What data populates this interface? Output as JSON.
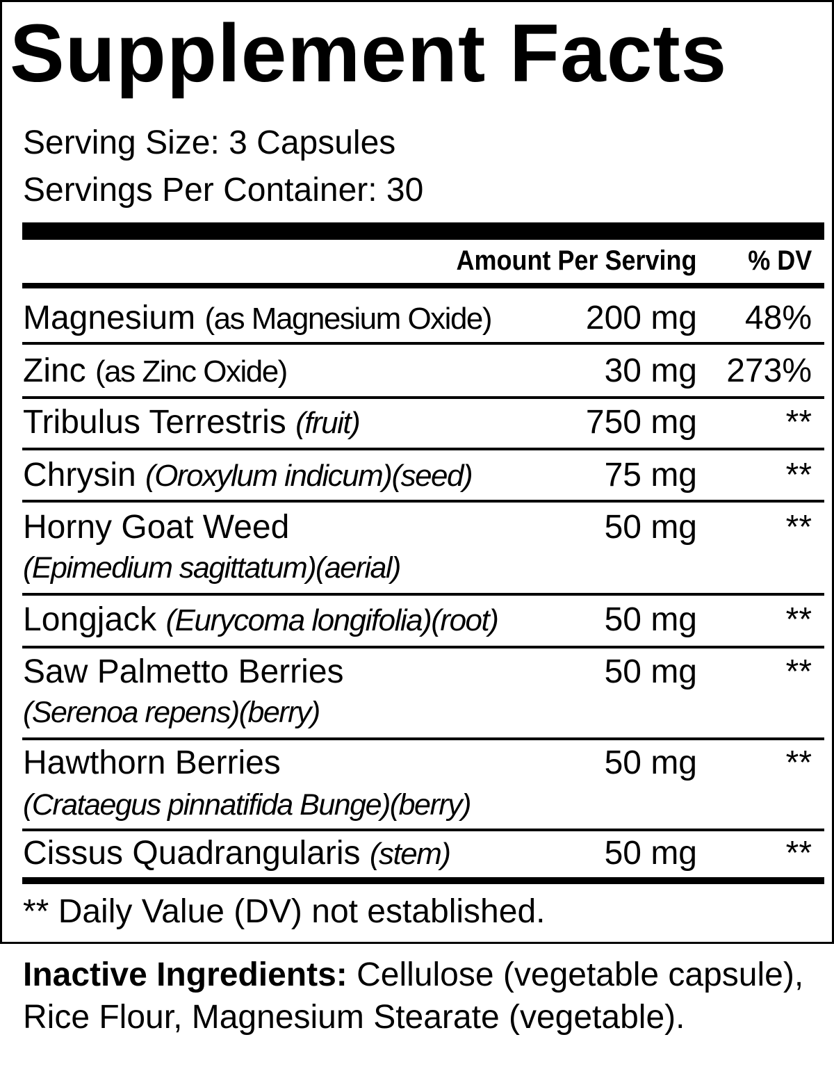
{
  "title": "Supplement Facts",
  "serving_size": "Serving Size: 3 Capsules",
  "servings_per_container": "Servings Per Container: 30",
  "header": {
    "amount": "Amount Per Serving",
    "dv": "% DV"
  },
  "rows": [
    {
      "name": "Magnesium",
      "detail": "(as Magnesium Oxide)",
      "amount": "200 mg",
      "dv": "48%"
    },
    {
      "name": "Zinc",
      "detail": "(as Zinc Oxide)",
      "amount": "30 mg",
      "dv": "273%"
    },
    {
      "name": "Tribulus Terrestris",
      "detail": "(fruit)",
      "amount": "750 mg",
      "dv": "**"
    },
    {
      "name": "Chrysin",
      "detail": "(Oroxylum indicum)(seed)",
      "amount": "75 mg",
      "dv": "**"
    },
    {
      "name": "Horny Goat Weed",
      "detail": "(Epimedium sagittatum)(aerial)",
      "amount": "50 mg",
      "dv": "**"
    },
    {
      "name": "Longjack",
      "detail": "(Eurycoma longifolia)(root)",
      "amount": "50 mg",
      "dv": "**"
    },
    {
      "name": "Saw Palmetto Berries",
      "detail": "(Serenoa repens)(berry)",
      "amount": "50 mg",
      "dv": "**"
    },
    {
      "name": "Hawthorn Berries",
      "detail": "(Crataegus pinnatifida Bunge)(berry)",
      "amount": "50 mg",
      "dv": "**"
    },
    {
      "name": "Cissus Quadrangularis",
      "detail": "(stem)",
      "amount": "50 mg",
      "dv": "**"
    }
  ],
  "footnote": "** Daily Value (DV) not established.",
  "inactive": {
    "label": "Inactive Ingredients:",
    "text": "Cellulose (vegetable capsule), Rice Flour, Magnesium Stearate (vegetable)."
  }
}
